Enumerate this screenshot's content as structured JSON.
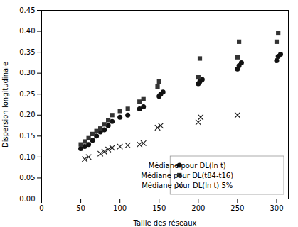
{
  "chart_data": {
    "type": "scatter",
    "xlabel": "Taille des réseaux",
    "ylabel": "Dispersion longitudinale",
    "xlim": [
      0,
      315
    ],
    "ylim": [
      0.0,
      0.45
    ],
    "xticks": [
      0,
      50,
      100,
      150,
      200,
      250,
      300
    ],
    "yticks": [
      {
        "value": 0.0,
        "label": "0.00"
      },
      {
        "value": 0.05,
        "label": "0.05"
      },
      {
        "value": 0.1,
        "label": "0.10"
      },
      {
        "value": 0.15,
        "label": "0.15"
      },
      {
        "value": 0.2,
        "label": "0.20"
      },
      {
        "value": 0.25,
        "label": "0.25"
      },
      {
        "value": 0.3,
        "label": "0.30"
      },
      {
        "value": 0.35,
        "label": "0.35"
      },
      {
        "value": 0.4,
        "label": "0.40"
      },
      {
        "value": 0.45,
        "label": "0.45"
      }
    ],
    "grid": false,
    "legend": "lower right",
    "series": [
      {
        "name": "Médiane pour DL(ln t)",
        "color": "#111111",
        "marker": "circle",
        "x": [
          50,
          55,
          60,
          65,
          70,
          75,
          80,
          85,
          90,
          100,
          110,
          125,
          130,
          150,
          152,
          155,
          200,
          202,
          205,
          250,
          252,
          255,
          300,
          302,
          305
        ],
        "values": [
          0.12,
          0.125,
          0.13,
          0.14,
          0.15,
          0.16,
          0.165,
          0.175,
          0.185,
          0.195,
          0.2,
          0.215,
          0.22,
          0.245,
          0.25,
          0.255,
          0.275,
          0.28,
          0.285,
          0.31,
          0.318,
          0.325,
          0.33,
          0.34,
          0.345
        ]
      },
      {
        "name": "Médiane pour DL(t84-t16)",
        "color": "#333333",
        "marker": "square",
        "x": [
          50,
          55,
          60,
          65,
          70,
          75,
          80,
          85,
          90,
          100,
          110,
          125,
          130,
          148,
          150,
          200,
          202,
          250,
          252,
          300,
          302
        ],
        "values": [
          0.13,
          0.137,
          0.145,
          0.155,
          0.162,
          0.168,
          0.178,
          0.188,
          0.2,
          0.21,
          0.215,
          0.232,
          0.238,
          0.268,
          0.28,
          0.29,
          0.335,
          0.338,
          0.375,
          0.375,
          0.395
        ]
      },
      {
        "name": "Médiane pour DL(ln t) 5%",
        "color": "#222222",
        "marker": "cross",
        "x": [
          55,
          60,
          75,
          80,
          85,
          90,
          100,
          110,
          125,
          130,
          148,
          152,
          200,
          203,
          250
        ],
        "values": [
          0.095,
          0.1,
          0.108,
          0.113,
          0.118,
          0.122,
          0.125,
          0.128,
          0.13,
          0.133,
          0.17,
          0.175,
          0.183,
          0.195,
          0.2
        ]
      }
    ]
  }
}
